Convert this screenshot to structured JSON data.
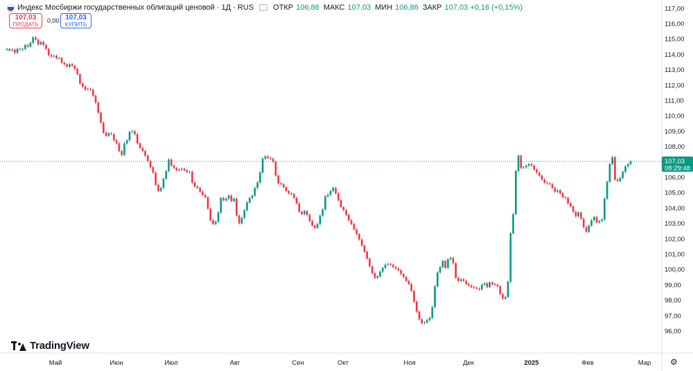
{
  "header": {
    "title": "Индекс Мосбиржи государственных облигаций ценовой · 1Д · RUS",
    "ohlc": [
      {
        "label": "ОТКР",
        "value": "106,86"
      },
      {
        "label": "МАКС",
        "value": "107,03"
      },
      {
        "label": "МИН",
        "value": "106,86"
      },
      {
        "label": "ЗАКР",
        "value": "107,03 +0,16 (+0,15%)"
      }
    ]
  },
  "trade": {
    "sell_price": "107,03",
    "sell_label": "ПРОДАТЬ",
    "spread": "0,00",
    "buy_price": "107,03",
    "buy_label": "КУПИТЬ"
  },
  "brand": "TradingView",
  "price_label": {
    "value": "107,03",
    "time": "08:29:48"
  },
  "colors": {
    "up": "#089981",
    "down": "#f23645",
    "axis_text": "#131722",
    "price_tag": "#089981"
  },
  "icons": {
    "flag": "russia-flag-icon",
    "logo": "tradingview-logo-icon",
    "settings": "gear-icon"
  },
  "chart_data": {
    "type": "candlestick",
    "y_axis": {
      "min": 95,
      "max": 117,
      "tick_labels": [
        "96,00",
        "97,00",
        "98,00",
        "99,00",
        "100,00",
        "101,00",
        "102,00",
        "103,00",
        "104,00",
        "105,00",
        "106,00",
        "107,00",
        "108,00",
        "109,00",
        "110,00",
        "111,00",
        "112,00",
        "113,00",
        "114,00",
        "115,00",
        "116,00",
        "117,00"
      ]
    },
    "x_axis": {
      "tick_labels": [
        "Май",
        "Июн",
        "Июл",
        "Авг",
        "Сен",
        "Окт",
        "Ноя",
        "Дек",
        "2025",
        "Фев",
        "Мар"
      ]
    },
    "last_price": 107.03,
    "close_series": [
      114.35,
      114.25,
      114.3,
      114.1,
      114.35,
      114.3,
      114.35,
      114.6,
      114.5,
      114.75,
      115.1,
      114.95,
      114.65,
      114.8,
      114.6,
      114.35,
      113.95,
      113.85,
      113.9,
      113.75,
      113.75,
      113.45,
      113.35,
      113.2,
      113.35,
      113.25,
      113.05,
      112.7,
      112.1,
      111.9,
      111.7,
      111.75,
      111.7,
      111.3,
      110.85,
      110.2,
      109.55,
      108.9,
      108.7,
      108.85,
      108.8,
      108.4,
      108.2,
      107.7,
      107.45,
      108.2,
      108.4,
      108.95,
      109.0,
      108.8,
      108.2,
      107.9,
      107.7,
      107.4,
      107.05,
      106.65,
      106.3,
      105.5,
      105.1,
      105.3,
      105.9,
      106.4,
      107.15,
      106.75,
      106.6,
      106.45,
      106.5,
      106.55,
      106.45,
      106.35,
      106.35,
      105.65,
      105.4,
      105.3,
      105.05,
      104.85,
      104.7,
      103.95,
      103.2,
      102.95,
      103.1,
      103.7,
      104.65,
      104.5,
      104.6,
      104.8,
      104.45,
      104.6,
      103.5,
      103.0,
      103.35,
      103.85,
      104.35,
      104.65,
      104.8,
      105.3,
      105.65,
      106.3,
      107.2,
      107.35,
      107.25,
      107.2,
      107.0,
      106.1,
      105.6,
      105.55,
      105.35,
      105.1,
      104.95,
      104.9,
      104.65,
      104.3,
      103.75,
      103.6,
      103.8,
      103.55,
      103.15,
      102.85,
      102.7,
      102.95,
      103.5,
      103.9,
      104.75,
      104.85,
      105.1,
      105.3,
      104.95,
      104.5,
      104.05,
      103.85,
      103.55,
      103.2,
      102.95,
      102.6,
      102.3,
      101.95,
      101.55,
      101.15,
      100.7,
      100.2,
      99.75,
      99.45,
      99.55,
      99.85,
      100.1,
      100.3,
      100.35,
      100.3,
      100.15,
      100.05,
      99.95,
      99.7,
      99.5,
      99.25,
      99.05,
      98.6,
      97.9,
      97.25,
      96.75,
      96.5,
      96.55,
      96.7,
      96.85,
      97.55,
      98.9,
      99.8,
      100.15,
      100.55,
      100.1,
      100.65,
      100.75,
      100.4,
      99.45,
      99.25,
      99.35,
      99.25,
      99.05,
      98.95,
      98.85,
      98.8,
      98.75,
      98.7,
      99.0,
      99.1,
      98.85,
      99.15,
      99.05,
      99.0,
      98.9,
      98.4,
      98.1,
      98.2,
      99.2,
      102.35,
      103.6,
      106.4,
      107.4,
      106.6,
      106.65,
      106.75,
      106.85,
      106.75,
      106.5,
      106.3,
      106.1,
      105.85,
      105.65,
      105.6,
      105.55,
      105.3,
      105.05,
      105.15,
      104.95,
      104.7,
      104.65,
      104.3,
      104.1,
      103.75,
      103.45,
      103.7,
      103.3,
      102.75,
      102.45,
      102.85,
      103.2,
      103.4,
      103.05,
      103.15,
      103.25,
      104.6,
      105.7,
      106.85,
      107.3,
      105.85,
      105.75,
      105.95,
      106.35,
      106.7,
      106.85,
      107.03
    ]
  }
}
